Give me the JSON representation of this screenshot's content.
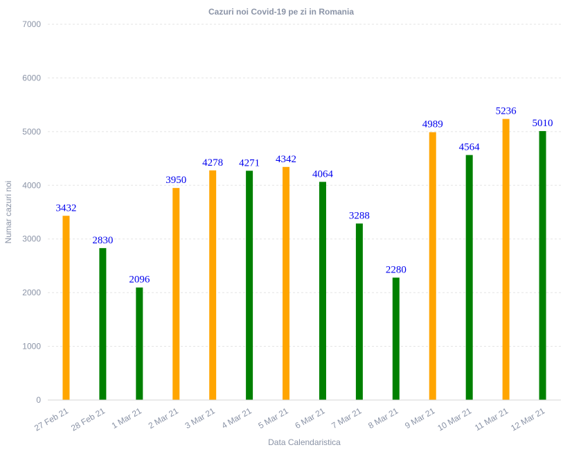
{
  "chart_data": {
    "type": "bar",
    "title": "Cazuri noi Covid-19 pe zi in Romania",
    "xlabel": "Data Calendaristica",
    "ylabel": "Numar cazuri noi",
    "ylim": [
      0,
      7000
    ],
    "yticks": [
      0,
      1000,
      2000,
      3000,
      4000,
      5000,
      6000,
      7000
    ],
    "grid": true,
    "categories": [
      "27 Feb 21",
      "28 Feb 21",
      "1 Mar 21",
      "2 Mar 21",
      "3 Mar 21",
      "4 Mar 21",
      "5 Mar 21",
      "6 Mar 21",
      "7 Mar 21",
      "8 Mar 21",
      "9 Mar 21",
      "10 Mar 21",
      "11 Mar 21",
      "12 Mar 21"
    ],
    "values": [
      3432,
      2830,
      2096,
      3950,
      4278,
      4271,
      4342,
      4064,
      3288,
      2280,
      4989,
      4564,
      5236,
      5010
    ],
    "bar_colors": [
      "#FFA500",
      "#008000",
      "#008000",
      "#FFA500",
      "#FFA500",
      "#008000",
      "#FFA500",
      "#008000",
      "#008000",
      "#008000",
      "#FFA500",
      "#008000",
      "#FFA500",
      "#008000"
    ],
    "label_color": "#0000EE"
  }
}
